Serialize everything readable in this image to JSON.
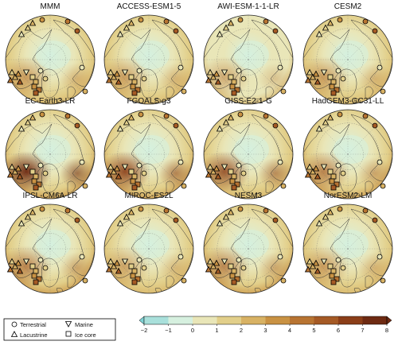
{
  "panels": [
    {
      "title": "MMM",
      "intensity": 0.45,
      "hot": 0.35
    },
    {
      "title": "ACCESS-ESM1-5",
      "intensity": 0.45,
      "hot": 0.3
    },
    {
      "title": "AWI-ESM-1-1-LR",
      "intensity": 0.2,
      "hot": 0.2
    },
    {
      "title": "CESM2",
      "intensity": 0.45,
      "hot": 0.35
    },
    {
      "title": "EC-Earth3-LR",
      "intensity": 0.7,
      "hot": 0.95
    },
    {
      "title": "FGOALS-g3",
      "intensity": 0.6,
      "hot": 0.85
    },
    {
      "title": "GISS-E2-1-G",
      "intensity": 0.4,
      "hot": 0.7
    },
    {
      "title": "HadGEM3-GC31-LL",
      "intensity": 0.55,
      "hot": 0.45
    },
    {
      "title": "IPSL-CM6A-LR",
      "intensity": 0.5,
      "hot": 0.45
    },
    {
      "title": "MIROC-ES2L",
      "intensity": 0.3,
      "hot": 0.2
    },
    {
      "title": "NESM3",
      "intensity": 0.5,
      "hot": 0.4
    },
    {
      "title": "NorESM2-LM",
      "intensity": 0.45,
      "hot": 0.35
    }
  ],
  "legend": {
    "terrestrial": "Terrestrial",
    "lacustrine": "Lacustrine",
    "marine": "Marine",
    "ice_core": "Ice core"
  },
  "colorbar": {
    "ticks": [
      "−2",
      "−1",
      "0",
      "1",
      "2",
      "3",
      "4",
      "5",
      "6",
      "7",
      "8"
    ],
    "colors": [
      "#7fd3d6",
      "#a9e0db",
      "#d6f0df",
      "#e9e6b8",
      "#e2cf8a",
      "#d8b264",
      "#c99243",
      "#b87432",
      "#a55a25",
      "#8b3e18",
      "#6e2a12"
    ]
  }
}
